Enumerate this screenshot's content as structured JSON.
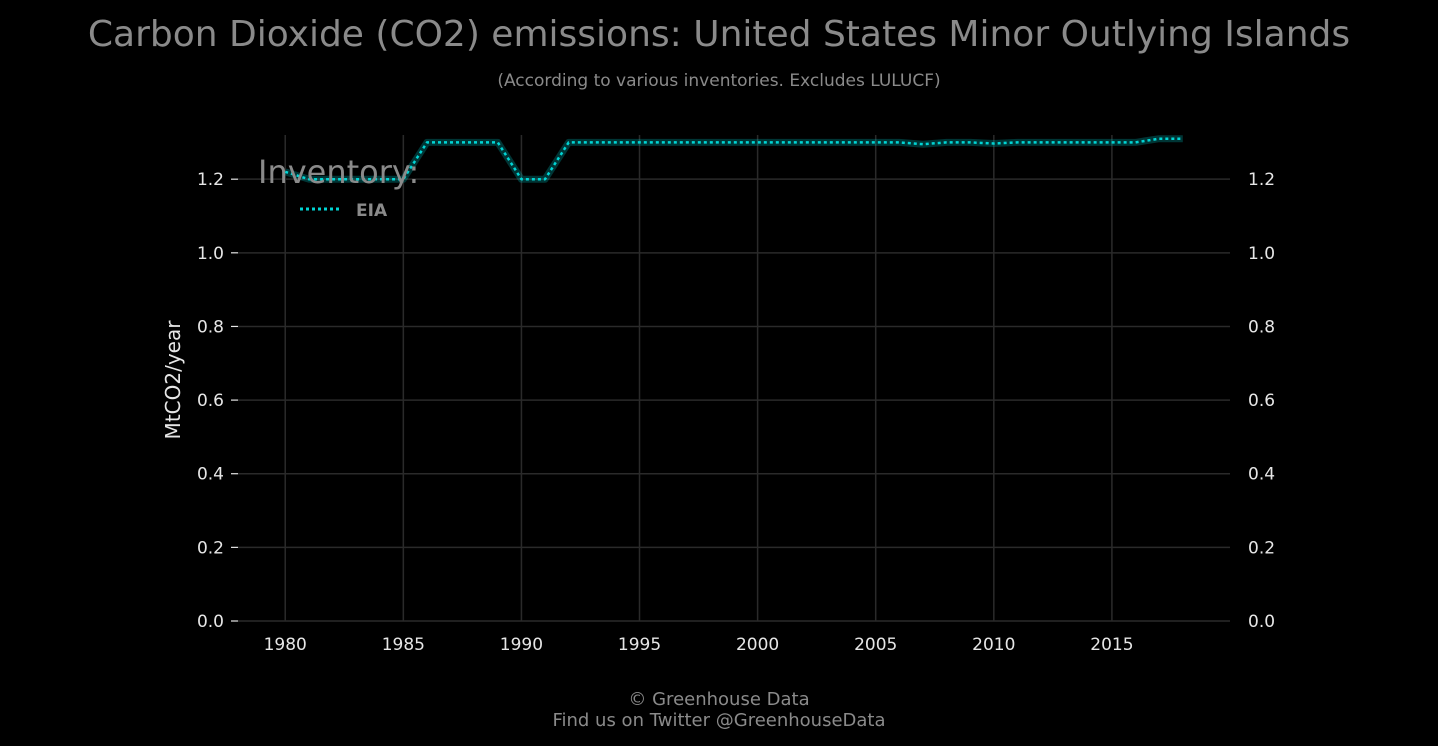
{
  "chart_data": {
    "type": "line",
    "title": "Carbon Dioxide (CO2) emissions: United States Minor Outlying Islands",
    "subtitle": "(According to various inventories. Excludes LULUCF)",
    "ylabel": "MtCO2/year",
    "xlabel": "",
    "xlim": [
      1978,
      2020
    ],
    "ylim": [
      0.0,
      1.32
    ],
    "x_ticks": [
      1980,
      1985,
      1990,
      1995,
      2000,
      2005,
      2010,
      2015
    ],
    "y_ticks": [
      0.0,
      0.2,
      0.4,
      0.6,
      0.8,
      1.0,
      1.2
    ],
    "y_tick_labels": [
      "0.0",
      "0.2",
      "0.4",
      "0.6",
      "0.8",
      "1.0",
      "1.2"
    ],
    "grid": true,
    "legend": {
      "title": "Inventory:",
      "placement": "top-left"
    },
    "series": [
      {
        "name": "EIA",
        "color": "#00d5d5",
        "style": "dotted",
        "x": [
          1980,
          1981,
          1982,
          1983,
          1984,
          1985,
          1986,
          1987,
          1988,
          1989,
          1990,
          1991,
          1992,
          1993,
          1994,
          1995,
          1996,
          1997,
          1998,
          1999,
          2000,
          2001,
          2002,
          2003,
          2004,
          2005,
          2006,
          2007,
          2008,
          2009,
          2010,
          2011,
          2012,
          2013,
          2014,
          2015,
          2016,
          2017,
          2018
        ],
        "y": [
          1.22,
          1.2,
          1.2,
          1.2,
          1.2,
          1.2,
          1.3,
          1.3,
          1.3,
          1.3,
          1.2,
          1.2,
          1.3,
          1.3,
          1.3,
          1.3,
          1.3,
          1.3,
          1.3,
          1.3,
          1.3,
          1.3,
          1.3,
          1.3,
          1.3,
          1.3,
          1.3,
          1.295,
          1.3,
          1.3,
          1.297,
          1.3,
          1.3,
          1.3,
          1.3,
          1.3,
          1.3,
          1.31,
          1.31
        ]
      }
    ]
  },
  "footer": {
    "copyright": "© Greenhouse Data",
    "twitter": "Find us on Twitter @GreenhouseData"
  }
}
